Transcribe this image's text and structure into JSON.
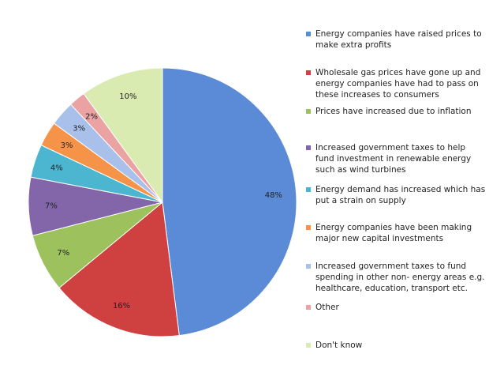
{
  "chart_data": {
    "type": "pie",
    "categories": [
      "Energy companies have raised prices to make extra profits",
      "Wholesale gas prices have gone up and energy companies have had to pass on these increases to consumers",
      "Prices have increased due to inflation",
      "Increased government taxes to help fund investment in renewable energy such as wind turbines",
      "Energy demand has increased which has put a strain on supply",
      "Energy companies have been making major new capital investments",
      "Increased government taxes to fund spending in other non- energy areas e.g. healthcare, education, transport etc.",
      "Other",
      "Don't know"
    ],
    "values": [
      48,
      16,
      7,
      7,
      4,
      3,
      3,
      2,
      10
    ],
    "value_labels": [
      "48%",
      "16%",
      "7%",
      "7%",
      "4%",
      "3%",
      "3%",
      "2%",
      "10%"
    ],
    "colors": [
      "#5b8bd6",
      "#cf4040",
      "#9dc15c",
      "#8366aa",
      "#4cb6d0",
      "#f59448",
      "#a9c1ea",
      "#eba2a2",
      "#d9ebb0"
    ]
  }
}
